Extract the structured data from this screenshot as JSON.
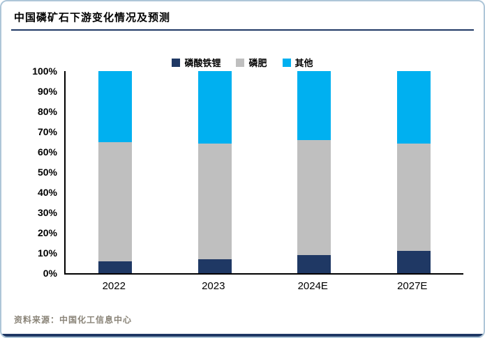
{
  "title": "中国磷矿石下游变化情况及预测",
  "source": "资料来源：中国化工信息中心",
  "colors": {
    "accent_navy": "#1F3864",
    "frame_border": "#aec6d8"
  },
  "chart_data": {
    "type": "bar",
    "stacked": true,
    "stacked_percent": true,
    "title": "中国磷矿石下游变化情况及预测",
    "categories": [
      "2022",
      "2023",
      "2024E",
      "2027E"
    ],
    "series": [
      {
        "name": "磷酸铁锂",
        "color": "#1F3864",
        "values": [
          6,
          7,
          9,
          11
        ]
      },
      {
        "name": "磷肥",
        "color": "#BFBFBF",
        "values": [
          59,
          57,
          57,
          53
        ]
      },
      {
        "name": "其他",
        "color": "#00B0F0",
        "values": [
          35,
          36,
          34,
          36
        ]
      }
    ],
    "xlabel": "",
    "ylabel": "",
    "ylim": [
      0,
      100
    ],
    "ytick_step": 10,
    "ytick_suffix": "%",
    "grid": false,
    "legend_position": "top"
  }
}
